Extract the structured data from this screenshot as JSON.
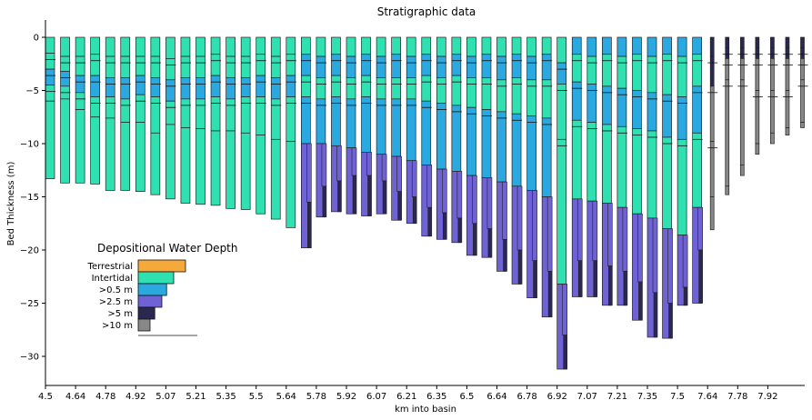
{
  "chart_data": {
    "type": "bar",
    "title": "Stratigraphic data",
    "xlabel": "km into basin",
    "ylabel": "Bed Thickness (m)",
    "ylim": [
      -32.5,
      1.5
    ],
    "yticks": [
      0,
      -5,
      -10,
      -15,
      -20,
      -25,
      -30
    ],
    "x_tick_labels": [
      "4.5",
      "4.64",
      "4.78",
      "4.92",
      "5.07",
      "5.21",
      "5.35",
      "5.5",
      "5.64",
      "5.78",
      "5.92",
      "6.07",
      "6.21",
      "6.35",
      "6.5",
      "6.64",
      "6.78",
      "6.92",
      "7.07",
      "7.21",
      "7.35",
      "7.5",
      "7.64",
      "7.78",
      "7.92"
    ],
    "column_spacing_km": 0.07,
    "x_start_km": 4.5,
    "legend": {
      "title": "Depositional Water Depth",
      "position": "lower-left",
      "entries": [
        {
          "name": "Terrestrial",
          "color": "#f5a93a",
          "value": 1.0
        },
        {
          "name": "Intertidal",
          "color": "#2fe0b0",
          "value": 0.75
        },
        {
          "name": ">0.5 m",
          "color": "#2aa8e0",
          "value": 0.6
        },
        {
          "name": ">2.5 m",
          "color": "#6e62d4",
          "value": 0.5
        },
        {
          "name": ">5 m",
          "color": "#2a2850",
          "value": 0.35
        },
        {
          "name": ">10 m",
          "color": "#888888",
          "value": 0.25
        }
      ]
    },
    "facies_colors": [
      "#f5a93a",
      "#2fe0b0",
      "#2aa8e0",
      "#6e62d4",
      "#2a2850",
      "#888888"
    ],
    "total_depth_m": [
      -13.3,
      -13.7,
      -13.7,
      -13.8,
      -14.4,
      -14.4,
      -14.5,
      -14.8,
      -15.2,
      -15.6,
      -15.7,
      -15.8,
      -16.1,
      -16.2,
      -16.6,
      -17.1,
      -17.9,
      -19.8,
      -16.9,
      -16.4,
      -16.6,
      -16.8,
      -16.6,
      -17.2,
      -17.5,
      -18.7,
      -19.0,
      -19.3,
      -20.5,
      -20.7,
      -22.0,
      -23.2,
      -24.5,
      -26.3,
      -31.2,
      -24.4,
      -24.4,
      -25.2,
      -25.2,
      -26.6,
      -28.2,
      -28.3,
      -25.2,
      -25.0,
      -18.1,
      -14.8,
      -13.0,
      -11.0,
      -10.0,
      -9.2,
      -8.5,
      -8.0
    ],
    "facies_transitions": [
      {
        "depths": [
          -1.5,
          -3,
          -4.5,
          -6
        ],
        "tail": []
      },
      {
        "depths": [
          -1.8,
          -3.2,
          -4.6,
          -5.8
        ],
        "tail": []
      },
      {
        "depths": [
          -1.8,
          -3.6,
          -5.2,
          -6.8
        ],
        "tail": []
      },
      {
        "depths": [
          -1.6,
          -3.6,
          -5.6,
          -7.5
        ],
        "tail": []
      },
      {
        "depths": [
          -1.8,
          -3.8,
          -5.6,
          -7.6
        ],
        "tail": []
      },
      {
        "depths": [
          -1.8,
          -3.8,
          -5.8,
          -8
        ],
        "tail": []
      },
      {
        "depths": [
          -1.8,
          -3.6,
          -5.4,
          -8
        ],
        "tail": []
      },
      {
        "depths": [
          -1.8,
          -3.8,
          -5.6,
          -9
        ],
        "tail": []
      },
      {
        "depths": [
          -2,
          -4,
          -6,
          -8.2
        ],
        "tail": []
      },
      {
        "depths": [
          -1.8,
          -3.8,
          -5.8,
          -8.5
        ],
        "tail": []
      },
      {
        "depths": [
          -1.8,
          -3.8,
          -5.8,
          -8.6
        ],
        "tail": []
      },
      {
        "depths": [
          -1.6,
          -3.6,
          -5.6,
          -8.8
        ],
        "tail": []
      },
      {
        "depths": [
          -1.8,
          -3.8,
          -5.8,
          -8.8
        ],
        "tail": []
      },
      {
        "depths": [
          -1.8,
          -3.8,
          -5.6,
          -9
        ],
        "tail": []
      },
      {
        "depths": [
          -1.6,
          -3.6,
          -5.6,
          -9.2
        ],
        "tail": []
      },
      {
        "depths": [
          -1.8,
          -3.8,
          -5.8,
          -9.6
        ],
        "tail": []
      },
      {
        "depths": [
          -1.6,
          -3.6,
          -5.6,
          -9.8
        ],
        "tail": []
      },
      {
        "depths": [
          -1.6,
          -3.6,
          -5.6,
          -10
        ],
        "tail": [
          -15.5
        ]
      },
      {
        "depths": [
          -1.8,
          -3.8,
          -5.8,
          -10
        ],
        "tail": [
          -14
        ]
      },
      {
        "depths": [
          -1.6,
          -3.6,
          -5.6,
          -10.2
        ],
        "tail": [
          -13.5
        ]
      },
      {
        "depths": [
          -1.8,
          -3.8,
          -5.8,
          -10.4
        ],
        "tail": [
          -13
        ]
      },
      {
        "depths": [
          -1.6,
          -3.6,
          -5.6,
          -10.8
        ],
        "tail": [
          -13
        ]
      },
      {
        "depths": [
          -1.8,
          -3.8,
          -5.8,
          -11
        ],
        "tail": [
          -13.5
        ]
      },
      {
        "depths": [
          -1.6,
          -3.8,
          -5.8,
          -11.2
        ],
        "tail": [
          -14.5
        ]
      },
      {
        "depths": [
          -1.8,
          -3.8,
          -5.8,
          -11.6
        ],
        "tail": [
          -15
        ]
      },
      {
        "depths": [
          -1.6,
          -3.6,
          -6,
          -12
        ],
        "tail": [
          -16
        ]
      },
      {
        "depths": [
          -1.8,
          -3.8,
          -6.2,
          -12.4
        ],
        "tail": [
          -16.5
        ]
      },
      {
        "depths": [
          -1.6,
          -3.6,
          -6.4,
          -12.6
        ],
        "tail": [
          -17
        ]
      },
      {
        "depths": [
          -1.8,
          -3.8,
          -6.6,
          -13
        ],
        "tail": [
          -17.5
        ]
      },
      {
        "depths": [
          -1.6,
          -3.8,
          -6.8,
          -13.2
        ],
        "tail": [
          -18
        ]
      },
      {
        "depths": [
          -1.8,
          -4,
          -7,
          -13.6
        ],
        "tail": [
          -19
        ]
      },
      {
        "depths": [
          -1.6,
          -3.8,
          -7.2,
          -14
        ],
        "tail": [
          -20
        ]
      },
      {
        "depths": [
          -1.8,
          -4,
          -7.4,
          -14.4
        ],
        "tail": [
          -21
        ]
      },
      {
        "depths": [
          -1.6,
          -4,
          -7.6,
          -15
        ],
        "tail": [
          -22
        ]
      },
      {
        "depths": [
          -2.4,
          -4.4,
          -9.6,
          -23.2
        ],
        "tail": [
          -28
        ]
      },
      {
        "depths": [
          -1.6,
          -4.2,
          -7.8,
          -15.2
        ],
        "tail": [
          -21
        ]
      },
      {
        "depths": [
          -1.8,
          -4.4,
          -8,
          -15.4
        ],
        "tail": [
          -21
        ]
      },
      {
        "depths": [
          -1.6,
          -4.6,
          -8.2,
          -15.6
        ],
        "tail": [
          -21.5
        ]
      },
      {
        "depths": [
          -1.8,
          -4.8,
          -8.4,
          -16
        ],
        "tail": [
          -22
        ]
      },
      {
        "depths": [
          -1.6,
          -5,
          -8.6,
          -16.6
        ],
        "tail": [
          -23
        ]
      },
      {
        "depths": [
          -1.8,
          -5.2,
          -8.8,
          -17
        ],
        "tail": [
          -24
        ]
      },
      {
        "depths": [
          -1.6,
          -5.4,
          -9.4,
          -18
        ],
        "tail": [
          -25
        ]
      },
      {
        "depths": [
          -1.8,
          -5.6,
          -9.6,
          -18.6
        ],
        "tail": [
          -23.5
        ]
      },
      {
        "depths": [
          -1.6,
          -4.6,
          -9,
          -16
        ],
        "tail": [
          -20
        ]
      },
      {
        "depths": [
          -1.8,
          -4.6,
          -9.8,
          -15
        ],
        "tail": []
      },
      {
        "depths": [
          -1,
          -2,
          -4,
          -14
        ],
        "tail": []
      },
      {
        "depths": [
          -1,
          -2,
          -4,
          -12
        ],
        "tail": []
      },
      {
        "depths": [
          -1,
          -2,
          -5,
          -10
        ],
        "tail": []
      },
      {
        "depths": [
          -1,
          -2,
          -5,
          -9
        ],
        "tail": []
      },
      {
        "depths": [
          -1,
          -2,
          -5,
          -8.5
        ],
        "tail": []
      },
      {
        "depths": [
          -1,
          -2,
          -4,
          -8
        ],
        "tail": []
      },
      {
        "depths": [
          -1,
          -2,
          -4,
          -7.5
        ],
        "tail": []
      }
    ]
  }
}
